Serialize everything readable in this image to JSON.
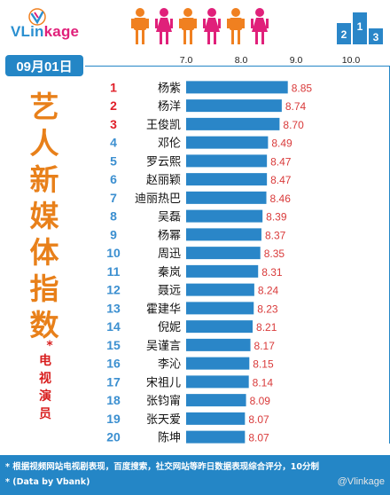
{
  "brand": {
    "logo_v": "V",
    "logo_rest": "Lin",
    "logo_kage": "kage"
  },
  "date": "09月01日",
  "side_title": [
    "艺",
    "人",
    "新",
    "媒",
    "体",
    "指",
    "数"
  ],
  "subtitle_star": "*",
  "subtitle": [
    "电",
    "视",
    "演",
    "员"
  ],
  "footer": {
    "line1": "* 根据视频网站电视剧表现，百度搜索，社交网站等昨日数据表现综合评分，10分制",
    "line2": "* (Data by Vbank)"
  },
  "watermark": "@Vlinkage",
  "colors": {
    "accent": "#2486c6",
    "bar": "#2a86c8",
    "rank_top3": "#e0202a",
    "rank_rest": "#3b8fd0",
    "value": "#d93a3a",
    "title": "#e8801a",
    "person_orange": "#f08020",
    "person_pink": "#e0207a"
  },
  "icons": [
    "vlinkage-logo-icon",
    "people-icon",
    "podium-icon"
  ],
  "podium_labels": [
    "2",
    "1",
    "3"
  ],
  "chart_data": {
    "type": "bar",
    "orientation": "horizontal",
    "categories": [
      "杨紫",
      "杨洋",
      "王俊凯",
      "邓伦",
      "罗云熙",
      "赵丽颖",
      "迪丽热巴",
      "吴磊",
      "杨幂",
      "周迅",
      "秦岚",
      "聂远",
      "霍建华",
      "倪妮",
      "吴谨言",
      "李沁",
      "宋祖儿",
      "张钧甯",
      "张天爱",
      "陈坤"
    ],
    "ranks": [
      "1",
      "2",
      "3",
      "4",
      "5",
      "6",
      "7",
      "8",
      "9",
      "10",
      "11",
      "12",
      "13",
      "14",
      "15",
      "16",
      "17",
      "18",
      "19",
      "20"
    ],
    "values": [
      8.85,
      8.74,
      8.7,
      8.49,
      8.47,
      8.47,
      8.46,
      8.39,
      8.37,
      8.35,
      8.31,
      8.24,
      8.23,
      8.21,
      8.17,
      8.15,
      8.14,
      8.09,
      8.07,
      8.07
    ],
    "value_labels": [
      "8.85",
      "8.74",
      "8.70",
      "8.49",
      "8.47",
      "8.47",
      "8.46",
      "8.39",
      "8.37",
      "8.35",
      "8.31",
      "8.24",
      "8.23",
      "8.21",
      "8.17",
      "8.15",
      "8.14",
      "8.09",
      "8.07",
      "8.07"
    ],
    "xticks": [
      7.0,
      8.0,
      9.0,
      10.0
    ],
    "xtick_labels": [
      "7.0",
      "8.0",
      "9.0",
      "10.0"
    ],
    "xlim": [
      7.0,
      10.0
    ],
    "grid": false,
    "xaxis_position": "top"
  }
}
